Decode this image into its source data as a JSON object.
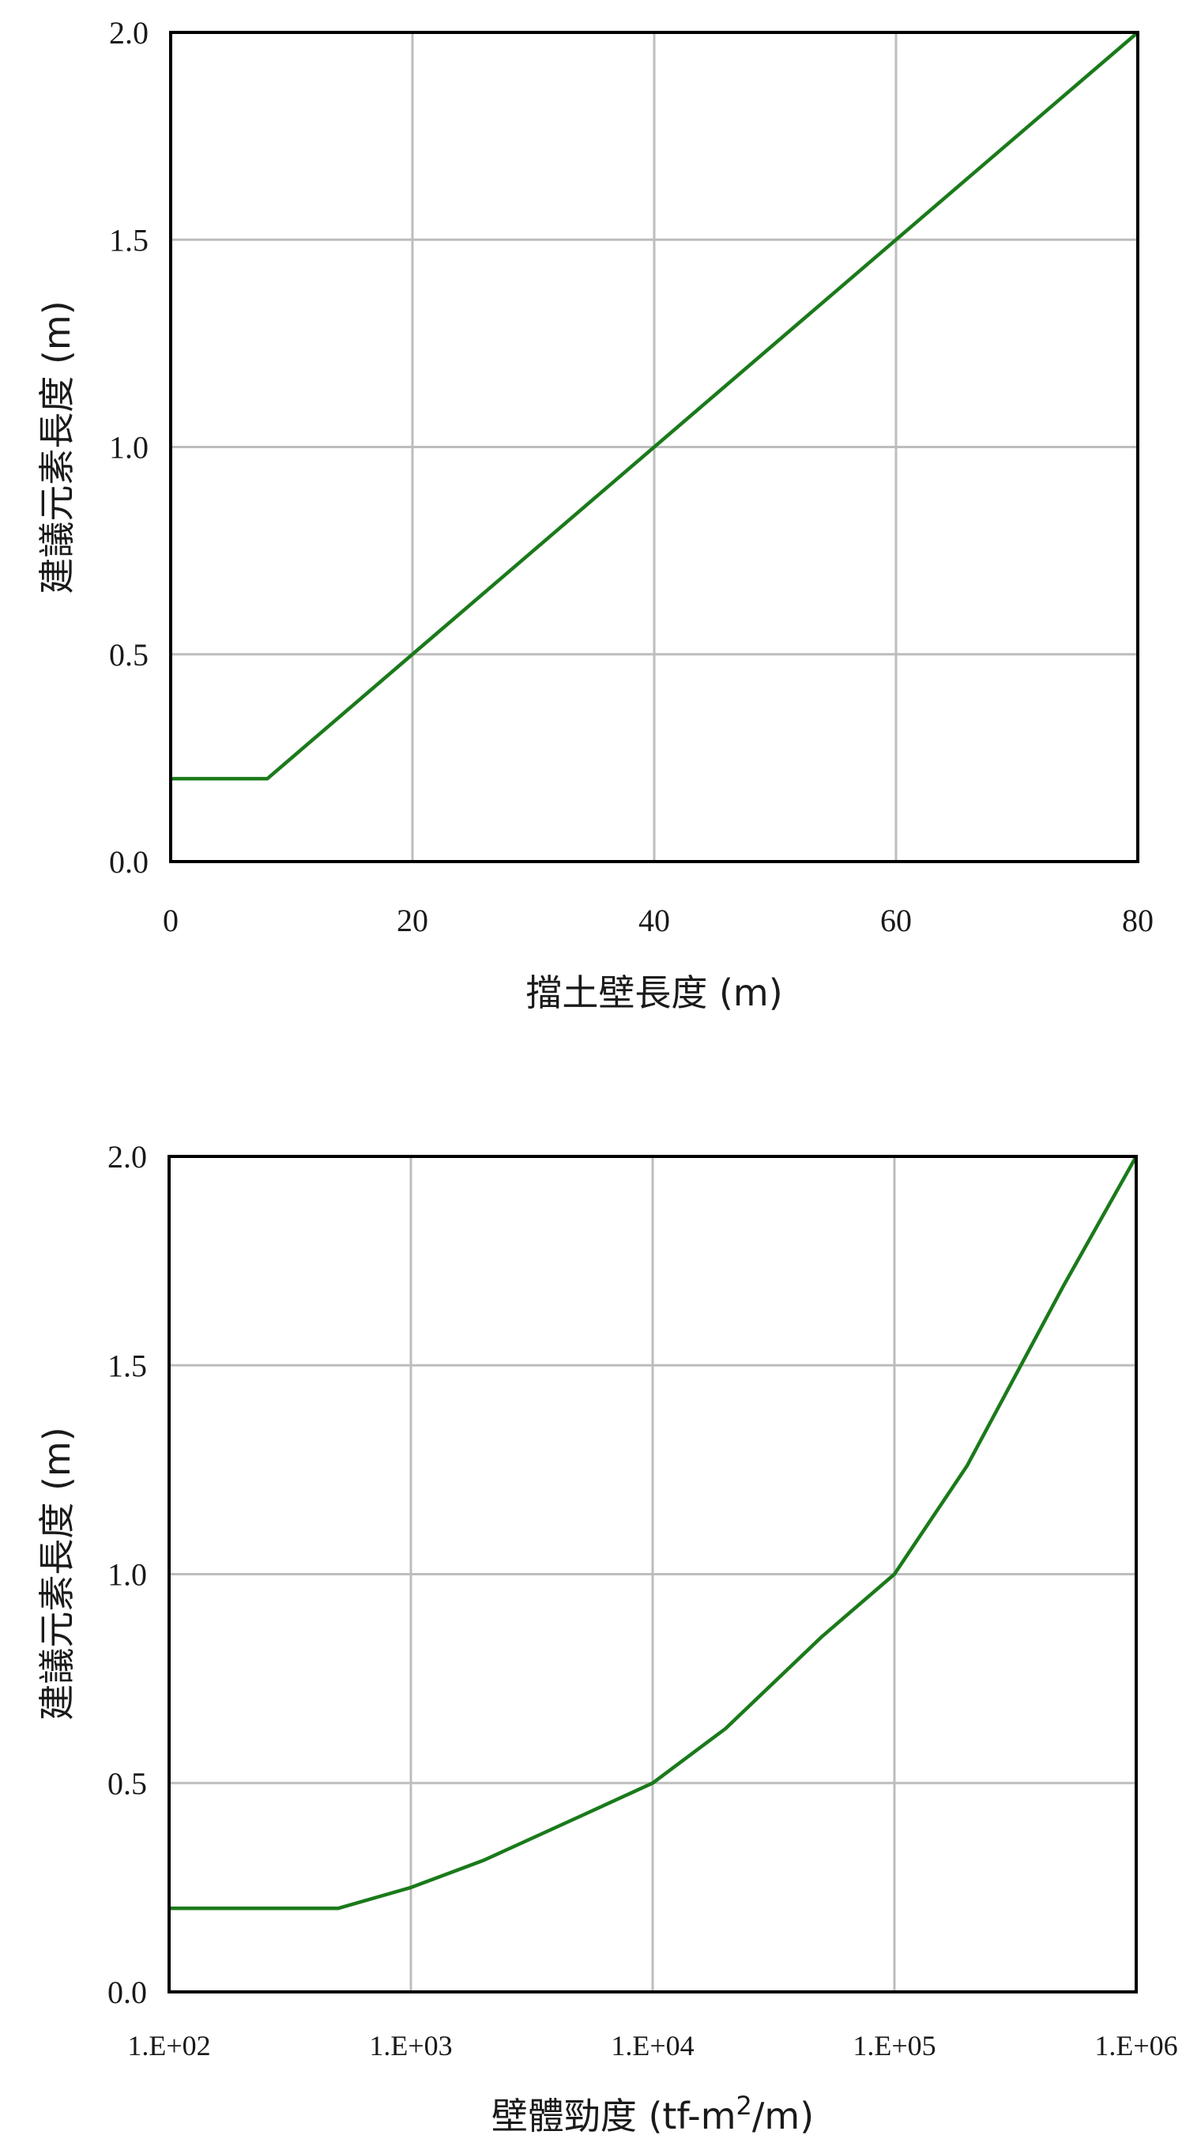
{
  "chart_data": [
    {
      "type": "line",
      "xlabel": "擋土壁長度 (m)",
      "ylabel": "建議元素長度 (m)",
      "x_scale": "linear",
      "xlim": [
        0,
        80
      ],
      "ylim": [
        0,
        2.0
      ],
      "x_ticks": [
        "0",
        "20",
        "40",
        "60",
        "80"
      ],
      "y_ticks": [
        "0.0",
        "0.5",
        "1.0",
        "1.5",
        "2.0"
      ],
      "grid": true,
      "series": [
        {
          "x": [
            0,
            8,
            80
          ],
          "y": [
            0.2,
            0.2,
            2.0
          ]
        }
      ]
    },
    {
      "type": "line",
      "xlabel_main": "壁體勁度 (tf-m",
      "xlabel_sup": "2",
      "xlabel_tail": "/m)",
      "ylabel": "建議元素長度 (m)",
      "x_scale": "log",
      "xlim": [
        100,
        1000000
      ],
      "ylim": [
        0,
        2.0
      ],
      "x_ticks": [
        "1.E+02",
        "1.E+03",
        "1.E+04",
        "1.E+05",
        "1.E+06"
      ],
      "y_ticks": [
        "0.0",
        "0.5",
        "1.0",
        "1.5",
        "2.0"
      ],
      "grid": true,
      "series": [
        {
          "x": [
            100,
            500,
            1000,
            2000,
            5000,
            10000,
            20000,
            50000,
            100000,
            200000,
            500000,
            1000000
          ],
          "y": [
            0.2,
            0.2,
            0.25,
            0.315,
            0.42,
            0.5,
            0.63,
            0.85,
            1.0,
            1.26,
            1.69,
            2.0
          ]
        }
      ]
    }
  ],
  "colors": {
    "series": "#1a7a1a",
    "grid": "#bdbdbd",
    "frame": "#000000"
  }
}
